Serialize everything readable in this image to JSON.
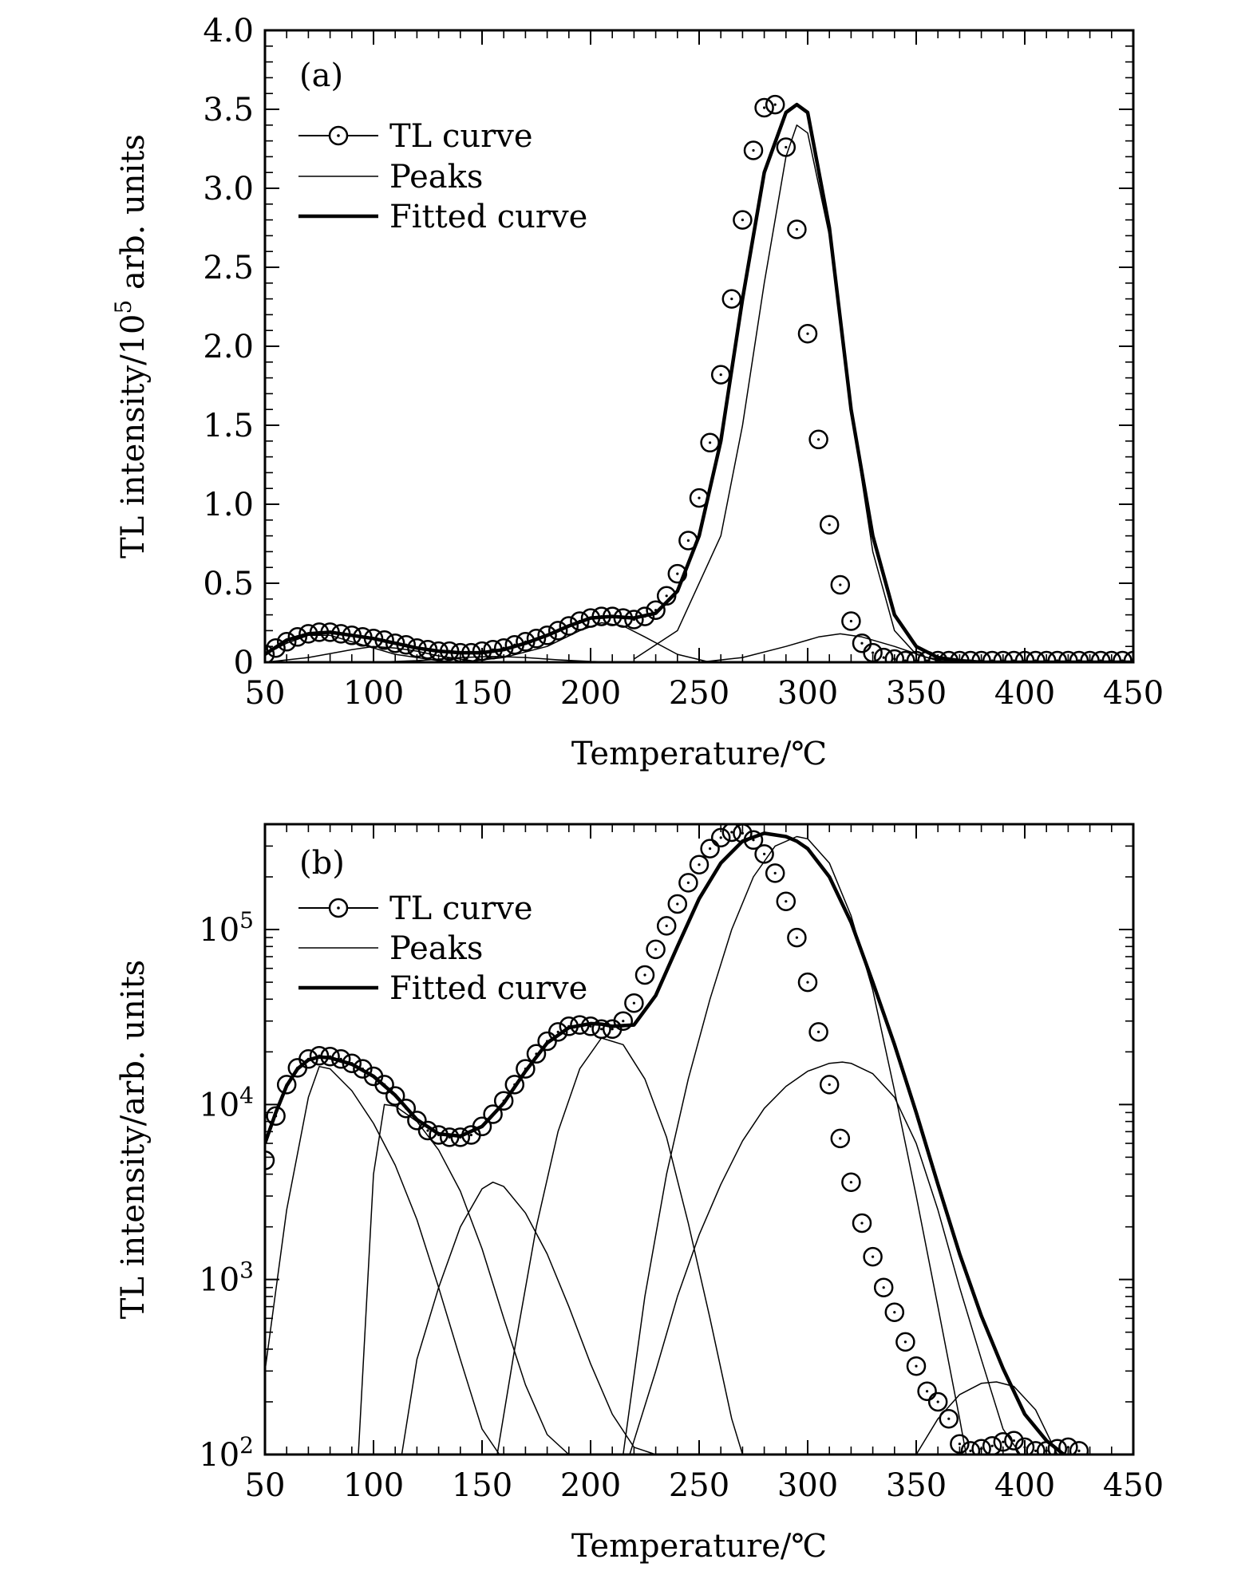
{
  "chart_data": [
    {
      "type": "line",
      "panel": "(a)",
      "scale": "linear",
      "xlabel": "Temperature/℃",
      "ylabel_prefix": "TL intensity/10",
      "ylabel_sup": "5",
      "ylabel_suffix": " arb. units",
      "xlim": [
        50,
        450
      ],
      "ylim": [
        0,
        4.0
      ],
      "xticks": [
        50,
        100,
        150,
        200,
        250,
        300,
        350,
        400,
        450
      ],
      "yticks": [
        "0",
        "0.5",
        "1.0",
        "1.5",
        "2.0",
        "2.5",
        "3.0",
        "3.5",
        "4.0"
      ],
      "yticks_values": [
        0,
        0.5,
        1.0,
        1.5,
        2.0,
        2.5,
        3.0,
        3.5,
        4.0
      ],
      "legend": {
        "position": "top-left",
        "entries": [
          "TL curve",
          "Peaks",
          "Fitted curve"
        ]
      },
      "series": [
        {
          "name": "TL curve",
          "style": "markers",
          "x": [
            50,
            55,
            60,
            65,
            70,
            75,
            80,
            85,
            90,
            95,
            100,
            105,
            110,
            115,
            120,
            125,
            130,
            135,
            140,
            145,
            150,
            155,
            160,
            165,
            170,
            175,
            180,
            185,
            190,
            195,
            200,
            205,
            210,
            215,
            220,
            225,
            230,
            235,
            240,
            245,
            250,
            255,
            260,
            265,
            270,
            275,
            280,
            285,
            290,
            295,
            300,
            305,
            310,
            315,
            320,
            325,
            330,
            335,
            340,
            345,
            350,
            355,
            360,
            365,
            370,
            375,
            380,
            385,
            390,
            395,
            400,
            405,
            410,
            415,
            420,
            425,
            430,
            435,
            440,
            445,
            450
          ],
          "y": [
            0.05,
            0.09,
            0.13,
            0.16,
            0.18,
            0.19,
            0.19,
            0.18,
            0.17,
            0.16,
            0.15,
            0.14,
            0.12,
            0.11,
            0.09,
            0.08,
            0.07,
            0.07,
            0.06,
            0.06,
            0.07,
            0.08,
            0.09,
            0.11,
            0.13,
            0.15,
            0.17,
            0.2,
            0.23,
            0.26,
            0.28,
            0.29,
            0.29,
            0.28,
            0.27,
            0.29,
            0.33,
            0.42,
            0.56,
            0.77,
            1.04,
            1.39,
            1.82,
            2.3,
            2.8,
            3.24,
            3.51,
            3.53,
            3.26,
            2.74,
            2.08,
            1.41,
            0.87,
            0.49,
            0.26,
            0.12,
            0.06,
            0.03,
            0.02,
            0.01,
            0.01,
            0.01,
            0.01,
            0.01,
            0.01,
            0.01,
            0.01,
            0.01,
            0.01,
            0.01,
            0.01,
            0.01,
            0.01,
            0.01,
            0.01,
            0.01,
            0.01,
            0.01,
            0.01,
            0.01,
            0.01
          ]
        },
        {
          "name": "Peaks",
          "style": "thin",
          "curves": [
            {
              "x": [
                50,
                60,
                70,
                80,
                90,
                100,
                110,
                120,
                130,
                140,
                150,
                160
              ],
              "y": [
                0.05,
                0.12,
                0.17,
                0.17,
                0.13,
                0.09,
                0.05,
                0.03,
                0.01,
                0.0,
                0.0,
                0.0
              ]
            },
            {
              "x": [
                50,
                70,
                90,
                100,
                110,
                120,
                130,
                140,
                150
              ],
              "y": [
                0.0,
                0.03,
                0.08,
                0.1,
                0.09,
                0.07,
                0.04,
                0.02,
                0.0
              ]
            },
            {
              "x": [
                100,
                120,
                140,
                155,
                170,
                185,
                200,
                215
              ],
              "y": [
                0.0,
                0.01,
                0.03,
                0.037,
                0.03,
                0.015,
                0.005,
                0.0
              ]
            },
            {
              "x": [
                140,
                160,
                180,
                195,
                205,
                215,
                225,
                240,
                255
              ],
              "y": [
                0.0,
                0.03,
                0.1,
                0.2,
                0.25,
                0.23,
                0.16,
                0.05,
                0.0
              ]
            },
            {
              "x": [
                220,
                240,
                260,
                270,
                280,
                290,
                295,
                300,
                310,
                320,
                330,
                340,
                350,
                360,
                370
              ],
              "y": [
                0.02,
                0.2,
                0.8,
                1.5,
                2.4,
                3.2,
                3.4,
                3.35,
                2.7,
                1.6,
                0.7,
                0.2,
                0.05,
                0.01,
                0.0
              ]
            },
            {
              "x": [
                250,
                270,
                290,
                305,
                315,
                325,
                340,
                355,
                370
              ],
              "y": [
                0.0,
                0.03,
                0.1,
                0.16,
                0.18,
                0.16,
                0.1,
                0.03,
                0.0
              ]
            }
          ]
        },
        {
          "name": "Fitted curve",
          "style": "thick",
          "x": [
            50,
            60,
            70,
            80,
            90,
            100,
            110,
            120,
            130,
            140,
            150,
            160,
            170,
            180,
            190,
            200,
            210,
            220,
            230,
            240,
            250,
            260,
            270,
            280,
            290,
            295,
            300,
            310,
            320,
            330,
            340,
            350,
            360,
            370,
            380,
            400,
            420,
            450
          ],
          "y": [
            0.05,
            0.14,
            0.18,
            0.19,
            0.17,
            0.15,
            0.12,
            0.09,
            0.07,
            0.06,
            0.06,
            0.08,
            0.12,
            0.17,
            0.23,
            0.28,
            0.29,
            0.28,
            0.31,
            0.45,
            0.8,
            1.4,
            2.3,
            3.1,
            3.48,
            3.53,
            3.48,
            2.75,
            1.6,
            0.8,
            0.3,
            0.1,
            0.03,
            0.01,
            0.0,
            0.0,
            0.0,
            0.0
          ]
        }
      ]
    },
    {
      "type": "line",
      "panel": "(b)",
      "scale": "log",
      "xlabel": "Temperature/℃",
      "ylabel": "TL intensity/arb. units",
      "xlim": [
        50,
        450
      ],
      "ylim": [
        100,
        400000
      ],
      "xticks": [
        50,
        100,
        150,
        200,
        250,
        300,
        350,
        400,
        450
      ],
      "yticks_values": [
        100,
        1000,
        10000,
        100000
      ],
      "ytick_labels": [
        {
          "base": "10",
          "exp": "2"
        },
        {
          "base": "10",
          "exp": "3"
        },
        {
          "base": "10",
          "exp": "4"
        },
        {
          "base": "10",
          "exp": "5"
        }
      ],
      "legend": {
        "position": "top-left",
        "entries": [
          "TL curve",
          "Peaks",
          "Fitted curve"
        ]
      },
      "series": [
        {
          "name": "TL curve",
          "style": "markers",
          "x": [
            50,
            55,
            60,
            65,
            70,
            75,
            80,
            85,
            90,
            95,
            100,
            105,
            110,
            115,
            120,
            125,
            130,
            135,
            140,
            145,
            150,
            155,
            160,
            165,
            170,
            175,
            180,
            185,
            190,
            195,
            200,
            205,
            210,
            215,
            220,
            225,
            230,
            235,
            240,
            245,
            250,
            255,
            260,
            265,
            270,
            275,
            280,
            285,
            290,
            295,
            300,
            305,
            310,
            315,
            320,
            325,
            330,
            335,
            340,
            345,
            350,
            355,
            360,
            365,
            370,
            375,
            380,
            385,
            390,
            395,
            400,
            405,
            410,
            415,
            420,
            425
          ],
          "y": [
            4800,
            8600,
            13000,
            16200,
            18200,
            19000,
            18800,
            18200,
            17200,
            16000,
            14500,
            13000,
            11200,
            9500,
            8100,
            7100,
            6700,
            6500,
            6500,
            6700,
            7500,
            8800,
            10500,
            13000,
            16000,
            19500,
            23000,
            26000,
            28000,
            28500,
            28000,
            27000,
            27000,
            30000,
            38000,
            55000,
            77000,
            105000,
            140000,
            185000,
            235000,
            290000,
            335000,
            360000,
            355000,
            325000,
            270000,
            210000,
            145000,
            90000,
            50000,
            26000,
            13000,
            6400,
            3600,
            2100,
            1350,
            900,
            650,
            440,
            320,
            230,
            200,
            160,
            115,
            105,
            108,
            112,
            118,
            120,
            110,
            105,
            105,
            108,
            110,
            105
          ]
        },
        {
          "name": "Peaks",
          "style": "thin",
          "curves": [
            {
              "x": [
                50,
                60,
                70,
                75,
                80,
                90,
                100,
                110,
                120,
                130,
                140,
                150,
                158
              ],
              "y": [
                300,
                2500,
                11000,
                16500,
                16000,
                12000,
                7800,
                4500,
                2200,
                900,
                350,
                140,
                100
              ]
            },
            {
              "x": [
                93,
                100,
                105,
                110,
                120,
                130,
                140,
                150,
                160,
                170,
                180,
                190
              ],
              "y": [
                100,
                4000,
                10000,
                9800,
                8000,
                5500,
                3200,
                1500,
                600,
                250,
                130,
                100
              ]
            },
            {
              "x": [
                113,
                120,
                130,
                140,
                150,
                155,
                160,
                170,
                180,
                190,
                200,
                210,
                220,
                230
              ],
              "y": [
                100,
                350,
                900,
                2000,
                3300,
                3600,
                3400,
                2400,
                1400,
                700,
                330,
                170,
                110,
                100
              ]
            },
            {
              "x": [
                157,
                165,
                175,
                185,
                195,
                205,
                215,
                225,
                235,
                245,
                255,
                265,
                270
              ],
              "y": [
                100,
                400,
                2000,
                7000,
                16000,
                24000,
                22000,
                14000,
                6500,
                2100,
                600,
                160,
                100
              ]
            },
            {
              "x": [
                215,
                225,
                235,
                245,
                255,
                265,
                275,
                285,
                295,
                300,
                310,
                320,
                330,
                340,
                350,
                360,
                370,
                373
              ],
              "y": [
                100,
                800,
                4000,
                14000,
                40000,
                100000,
                200000,
                300000,
                340000,
                330000,
                240000,
                120000,
                45000,
                12000,
                3000,
                700,
                160,
                100
              ]
            },
            {
              "x": [
                218,
                230,
                240,
                250,
                260,
                270,
                280,
                290,
                300,
                310,
                316,
                320,
                330,
                340,
                350,
                360,
                370,
                380,
                390,
                398
              ],
              "y": [
                100,
                300,
                800,
                1800,
                3500,
                6200,
                9500,
                12700,
                15500,
                17200,
                17500,
                17200,
                15000,
                11000,
                6000,
                2500,
                900,
                350,
                140,
                100
              ]
            },
            {
              "x": [
                350,
                360,
                370,
                380,
                387,
                395,
                405,
                415
              ],
              "y": [
                100,
                160,
                220,
                255,
                260,
                245,
                180,
                100
              ]
            }
          ]
        },
        {
          "name": "Fitted curve",
          "style": "thick",
          "x": [
            50,
            55,
            60,
            65,
            70,
            75,
            80,
            90,
            100,
            110,
            120,
            130,
            140,
            150,
            160,
            170,
            180,
            190,
            200,
            205,
            210,
            220,
            230,
            240,
            250,
            260,
            270,
            280,
            290,
            295,
            300,
            310,
            320,
            330,
            340,
            350,
            360,
            370,
            380,
            390,
            400,
            410,
            418
          ],
          "y": [
            6000,
            9000,
            12800,
            16000,
            18000,
            18700,
            18500,
            17000,
            14500,
            11300,
            8200,
            6800,
            6600,
            7500,
            10200,
            15500,
            22500,
            27500,
            29000,
            28800,
            28000,
            28500,
            42000,
            80000,
            150000,
            240000,
            320000,
            355000,
            340000,
            320000,
            290000,
            200000,
            110000,
            50000,
            22000,
            9000,
            3500,
            1400,
            620,
            310,
            170,
            120,
            100
          ]
        }
      ]
    }
  ]
}
